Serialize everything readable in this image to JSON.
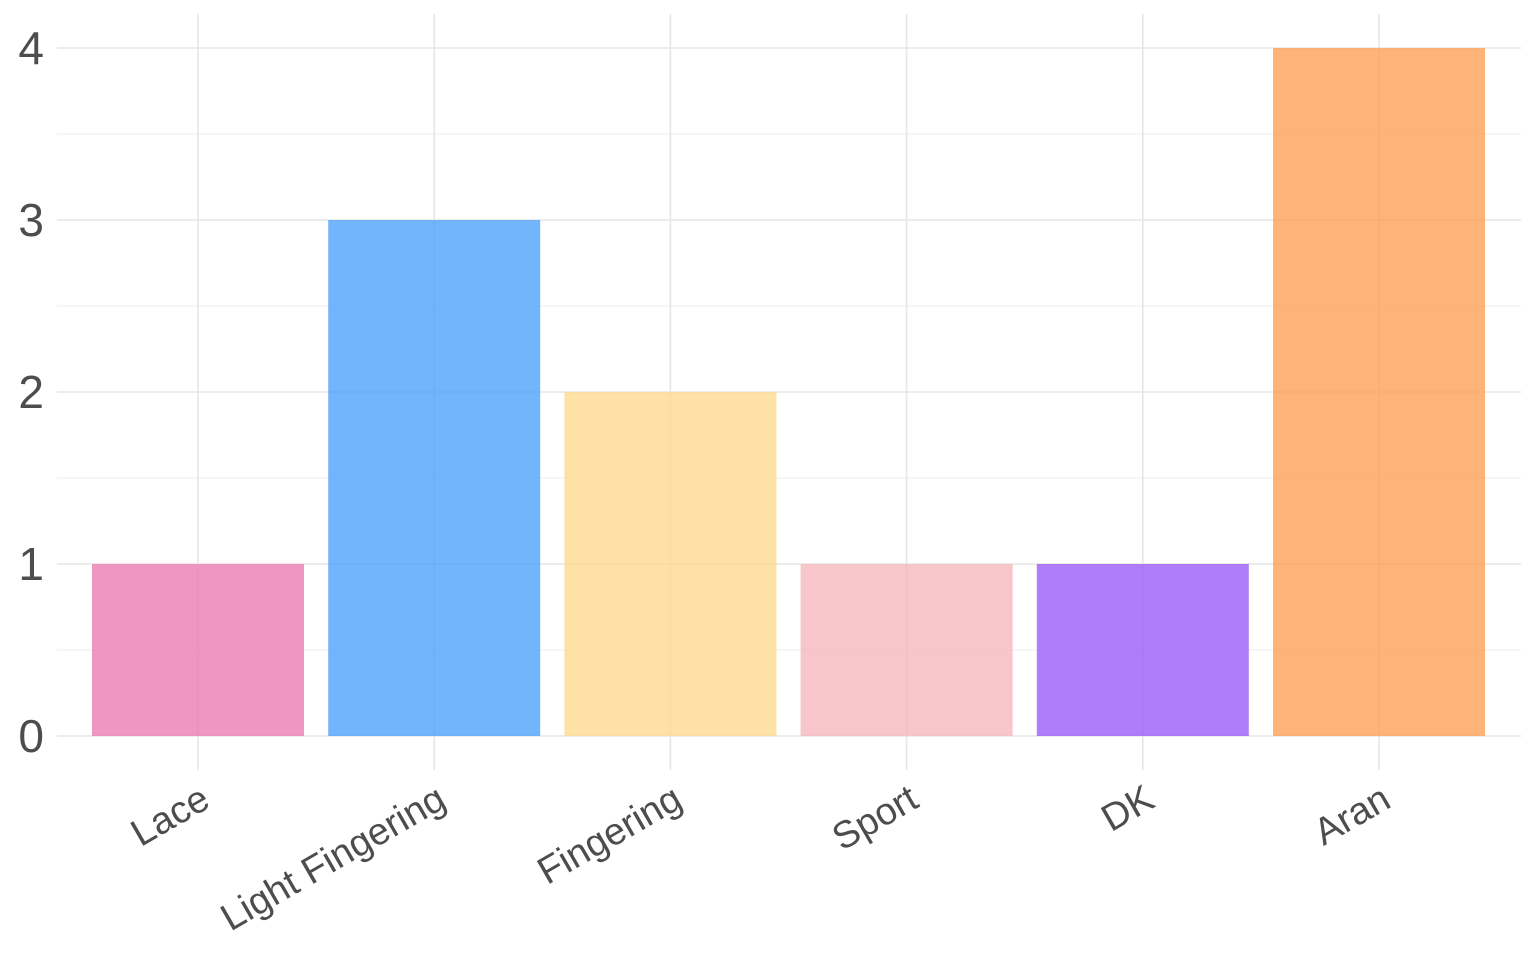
{
  "chart_data": {
    "type": "bar",
    "title": "",
    "xlabel": "",
    "ylabel": "",
    "categories": [
      "Lace",
      "Light Fingering",
      "Fingering",
      "Sport",
      "DK",
      "Aran"
    ],
    "values": [
      1,
      3,
      2,
      1,
      1,
      4
    ],
    "colors": [
      "#ec7ab0",
      "#4aa0fb",
      "#fed98d",
      "#f5b6bc",
      "#9759f5",
      "#fe9d52"
    ],
    "ylim": [
      0,
      4
    ],
    "y_ticks": [
      0,
      1,
      2,
      3,
      4
    ],
    "y_tick_labels": [
      "0",
      "1",
      "2",
      "3",
      "4"
    ],
    "grid": true,
    "legend": "none",
    "x_tick_label_rotation": "angled"
  }
}
